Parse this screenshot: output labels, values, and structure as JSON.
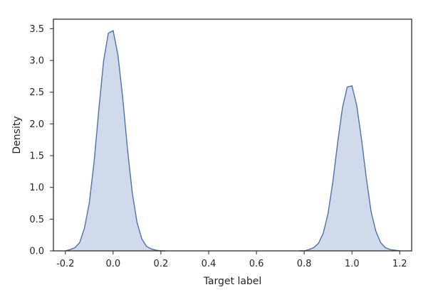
{
  "chart_data": {
    "type": "area",
    "title": "",
    "xlabel": "Target label",
    "ylabel": "Density",
    "xlim": [
      -0.25,
      1.25
    ],
    "ylim": [
      0,
      3.65
    ],
    "grid": false,
    "x_ticks": [
      -0.2,
      0.0,
      0.2,
      0.4,
      0.6,
      0.8,
      1.0,
      1.2
    ],
    "x_tick_labels": [
      "-0.2",
      "0.0",
      "0.2",
      "0.4",
      "0.6",
      "0.8",
      "1.0",
      "1.2"
    ],
    "y_ticks": [
      0.0,
      0.5,
      1.0,
      1.5,
      2.0,
      2.5,
      3.0,
      3.5
    ],
    "y_tick_labels": [
      "0.0",
      "0.5",
      "1.0",
      "1.5",
      "2.0",
      "2.5",
      "3.0",
      "3.5"
    ],
    "series": [
      {
        "x": [
          -0.2,
          -0.18,
          -0.16,
          -0.14,
          -0.12,
          -0.1,
          -0.08,
          -0.06,
          -0.04,
          -0.02,
          0.0,
          0.02,
          0.04,
          0.06,
          0.08,
          0.1,
          0.12,
          0.14,
          0.16,
          0.18,
          0.2,
          0.22
        ],
        "y": [
          0.0,
          0.02,
          0.05,
          0.13,
          0.36,
          0.75,
          1.39,
          2.22,
          2.99,
          3.43,
          3.47,
          3.09,
          2.42,
          1.61,
          0.92,
          0.45,
          0.19,
          0.07,
          0.03,
          0.01,
          0.0,
          0.0
        ]
      },
      {
        "x": [
          0.78,
          0.8,
          0.82,
          0.84,
          0.86,
          0.88,
          0.9,
          0.92,
          0.94,
          0.96,
          0.98,
          1.0,
          1.02,
          1.04,
          1.06,
          1.08,
          1.1,
          1.12,
          1.14,
          1.16,
          1.18,
          1.2
        ],
        "y": [
          0.0,
          0.0,
          0.02,
          0.05,
          0.12,
          0.28,
          0.59,
          1.09,
          1.7,
          2.25,
          2.58,
          2.6,
          2.29,
          1.76,
          1.15,
          0.62,
          0.31,
          0.13,
          0.05,
          0.02,
          0.01,
          0.0
        ]
      }
    ],
    "colors": {
      "line": "#4c72b0",
      "fill": "#ccd6e8",
      "frame": "#262626"
    }
  }
}
